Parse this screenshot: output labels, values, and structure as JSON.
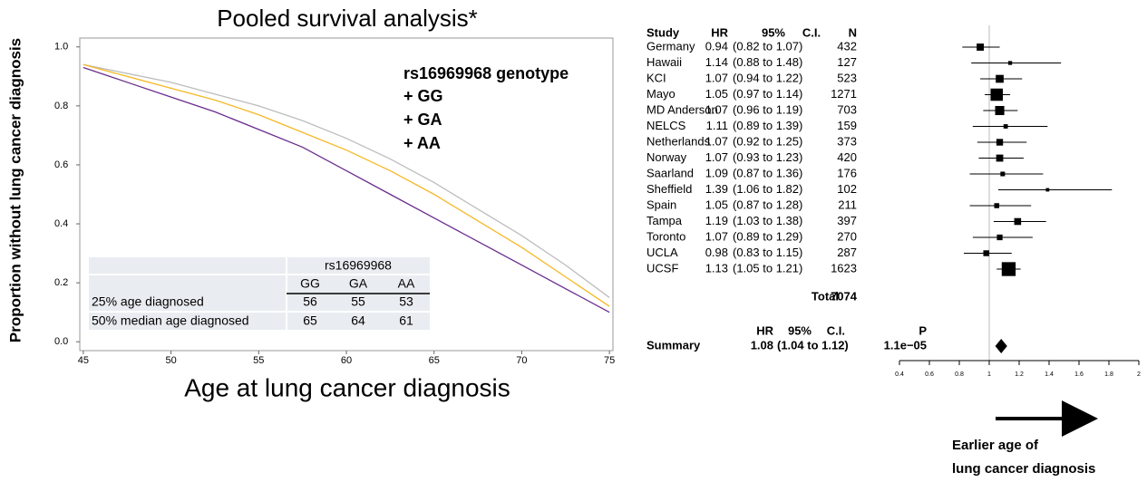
{
  "chart_data": [
    {
      "type": "line",
      "title": "Pooled survival analysis*",
      "x_label": "Age at lung cancer diagnosis",
      "y_label": "Proportion without lung cancer diagnosis",
      "xlim": [
        44.8,
        75.2
      ],
      "xticks": [
        45,
        50,
        55,
        60,
        65,
        70,
        75
      ],
      "ylim": [
        -0.03,
        1.03
      ],
      "yticks": [
        {
          "value": 0,
          "label": "0.0"
        },
        0.2,
        0.4,
        0.6,
        0.8,
        {
          "value": 1,
          "label": "1.0"
        }
      ],
      "legend_title": "rs16969968 genotype",
      "x": [
        45,
        47.5,
        50,
        52.5,
        55,
        57.5,
        60,
        62.5,
        65,
        67.5,
        70,
        72.5,
        75
      ],
      "series": [
        {
          "name": "+ GG",
          "color": "#bdbdbd",
          "legend_color": "#b5ae94",
          "values": [
            0.94,
            0.91,
            0.88,
            0.84,
            0.8,
            0.75,
            0.69,
            0.62,
            0.54,
            0.45,
            0.36,
            0.26,
            0.15
          ]
        },
        {
          "name": "+ GA",
          "color": "#f6b826",
          "legend_color": "#f6b826",
          "values": [
            0.94,
            0.9,
            0.86,
            0.82,
            0.77,
            0.71,
            0.65,
            0.58,
            0.5,
            0.41,
            0.32,
            0.22,
            0.12
          ]
        },
        {
          "name": "+ AA",
          "color": "#6a2c8e",
          "legend_color": "#8b4a2a",
          "values": [
            0.93,
            0.88,
            0.83,
            0.78,
            0.72,
            0.66,
            0.58,
            0.5,
            0.42,
            0.34,
            0.26,
            0.18,
            0.1
          ]
        }
      ],
      "table": {
        "header": "rs16969968",
        "columns": [
          "GG",
          "GA",
          "AA"
        ],
        "rows": [
          {
            "label": "25% age diagnosed",
            "values": [
              56,
              55,
              53
            ]
          },
          {
            "label": "50% median age diagnosed",
            "values": [
              65,
              64,
              61
            ],
            "color": "#e0202a"
          }
        ]
      }
    },
    {
      "type": "forest",
      "headers": [
        "Study",
        "HR",
        "95%",
        "C.I.",
        "N"
      ],
      "xlim": [
        0.4,
        2
      ],
      "xticks": [
        0.4,
        0.6,
        0.8,
        1,
        1.2,
        1.4,
        1.6,
        1.8,
        2
      ],
      "reference": 1,
      "studies": [
        {
          "name": "Germany",
          "hr": 0.94,
          "lo": 0.82,
          "hi": 1.07,
          "ci_label": "(0.82 to 1.07)",
          "n": 432
        },
        {
          "name": "Hawaii",
          "hr": 1.14,
          "lo": 0.88,
          "hi": 1.48,
          "ci_label": "(0.88 to 1.48)",
          "n": 127
        },
        {
          "name": "KCI",
          "hr": 1.07,
          "lo": 0.94,
          "hi": 1.22,
          "ci_label": "(0.94 to 1.22)",
          "n": 523
        },
        {
          "name": "Mayo",
          "hr": 1.05,
          "lo": 0.97,
          "hi": 1.14,
          "ci_label": "(0.97 to 1.14)",
          "n": 1271
        },
        {
          "name": "MD Anderson",
          "hr": 1.07,
          "lo": 0.96,
          "hi": 1.19,
          "ci_label": "(0.96 to 1.19)",
          "n": 703
        },
        {
          "name": "NELCS",
          "hr": 1.11,
          "lo": 0.89,
          "hi": 1.39,
          "ci_label": "(0.89 to 1.39)",
          "n": 159
        },
        {
          "name": "Netherlands",
          "hr": 1.07,
          "lo": 0.92,
          "hi": 1.25,
          "ci_label": "(0.92 to 1.25)",
          "n": 373
        },
        {
          "name": "Norway",
          "hr": 1.07,
          "lo": 0.93,
          "hi": 1.23,
          "ci_label": "(0.93 to 1.23)",
          "n": 420
        },
        {
          "name": "Saarland",
          "hr": 1.09,
          "lo": 0.87,
          "hi": 1.36,
          "ci_label": "(0.87 to 1.36)",
          "n": 176
        },
        {
          "name": "Sheffield",
          "hr": 1.39,
          "lo": 1.06,
          "hi": 1.82,
          "ci_label": "(1.06 to 1.82)",
          "n": 102
        },
        {
          "name": "Spain",
          "hr": 1.05,
          "lo": 0.87,
          "hi": 1.28,
          "ci_label": "(0.87 to 1.28)",
          "n": 211
        },
        {
          "name": "Tampa",
          "hr": 1.19,
          "lo": 1.03,
          "hi": 1.38,
          "ci_label": "(1.03 to 1.38)",
          "n": 397
        },
        {
          "name": "Toronto",
          "hr": 1.07,
          "lo": 0.89,
          "hi": 1.29,
          "ci_label": "(0.89 to 1.29)",
          "n": 270
        },
        {
          "name": "UCLA",
          "hr": 0.98,
          "lo": 0.83,
          "hi": 1.15,
          "ci_label": "(0.83 to 1.15)",
          "n": 287
        },
        {
          "name": "UCSF",
          "hr": 1.13,
          "lo": 1.05,
          "hi": 1.21,
          "ci_label": "(1.05 to 1.21)",
          "n": 1623
        }
      ],
      "total_label": "Total",
      "total": 7074,
      "summary_headers": [
        "HR",
        "95%",
        "C.I.",
        "P"
      ],
      "summary": {
        "name": "Summary",
        "hr": 1.08,
        "lo": 1.04,
        "hi": 1.12,
        "ci_label": "(1.04 to 1.12)",
        "p": {
          "value": 1.1e-05,
          "label": "1.1e−05"
        }
      },
      "annotation": [
        "Earlier age of",
        "lung cancer diagnosis"
      ]
    }
  ]
}
